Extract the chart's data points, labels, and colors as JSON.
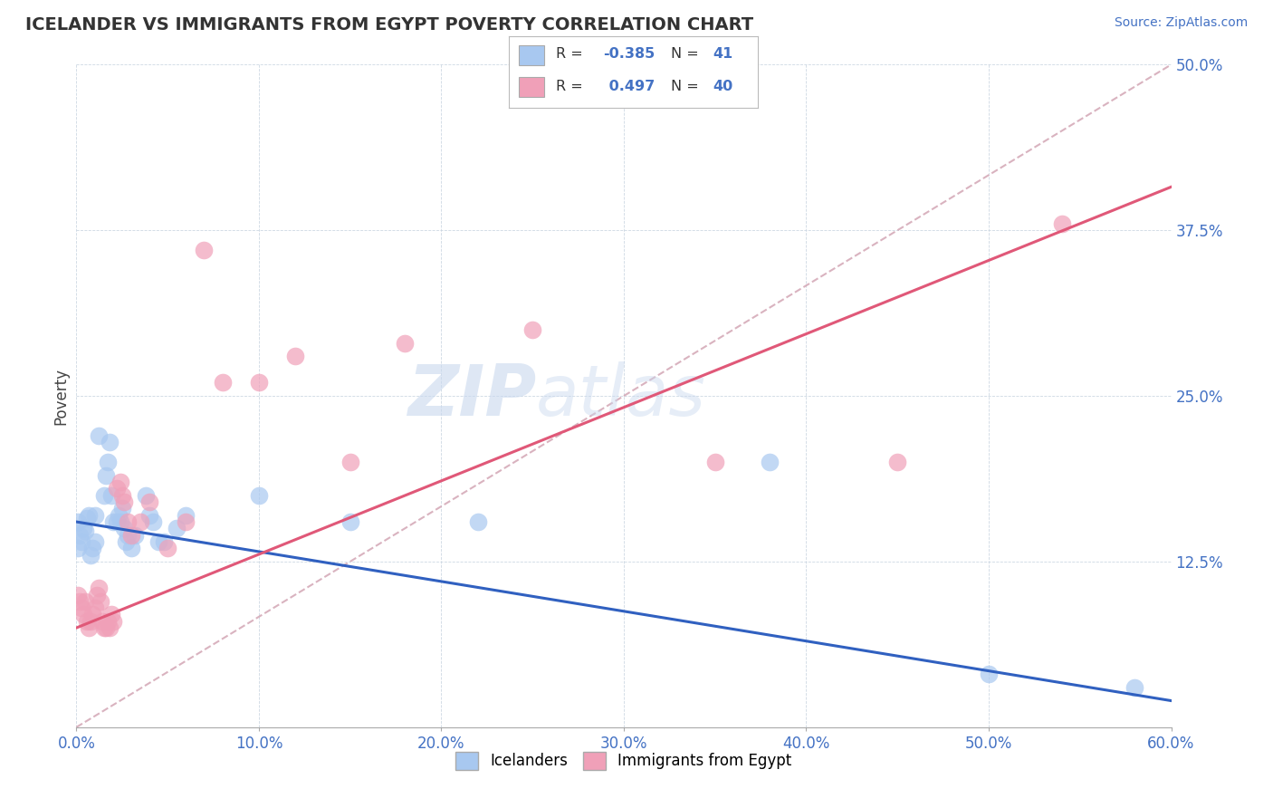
{
  "title": "ICELANDER VS IMMIGRANTS FROM EGYPT POVERTY CORRELATION CHART",
  "source": "Source: ZipAtlas.com",
  "xlim": [
    0,
    0.6
  ],
  "ylim": [
    0,
    0.5
  ],
  "ylabel": "Poverty",
  "legend_items": [
    "Icelanders",
    "Immigrants from Egypt"
  ],
  "R_icelander": -0.385,
  "N_icelander": 41,
  "R_egypt": 0.497,
  "N_egypt": 40,
  "icelander_color": "#a8c8f0",
  "egypt_color": "#f0a0b8",
  "icelander_line_color": "#3060c0",
  "egypt_line_color": "#e05878",
  "ref_line_color": "#d0a0b0",
  "watermark_color": "#dce8f8",
  "background_color": "#ffffff",
  "icelander_points": [
    [
      0.001,
      0.155
    ],
    [
      0.001,
      0.135
    ],
    [
      0.002,
      0.145
    ],
    [
      0.003,
      0.14
    ],
    [
      0.004,
      0.15
    ],
    [
      0.005,
      0.148
    ],
    [
      0.006,
      0.158
    ],
    [
      0.007,
      0.16
    ],
    [
      0.008,
      0.13
    ],
    [
      0.009,
      0.135
    ],
    [
      0.01,
      0.14
    ],
    [
      0.01,
      0.16
    ],
    [
      0.012,
      0.22
    ],
    [
      0.015,
      0.175
    ],
    [
      0.016,
      0.19
    ],
    [
      0.017,
      0.2
    ],
    [
      0.018,
      0.215
    ],
    [
      0.019,
      0.175
    ],
    [
      0.02,
      0.155
    ],
    [
      0.022,
      0.155
    ],
    [
      0.023,
      0.16
    ],
    [
      0.024,
      0.155
    ],
    [
      0.025,
      0.165
    ],
    [
      0.026,
      0.15
    ],
    [
      0.027,
      0.14
    ],
    [
      0.028,
      0.145
    ],
    [
      0.03,
      0.135
    ],
    [
      0.032,
      0.145
    ],
    [
      0.038,
      0.175
    ],
    [
      0.04,
      0.16
    ],
    [
      0.042,
      0.155
    ],
    [
      0.045,
      0.14
    ],
    [
      0.048,
      0.14
    ],
    [
      0.055,
      0.15
    ],
    [
      0.06,
      0.16
    ],
    [
      0.1,
      0.175
    ],
    [
      0.15,
      0.155
    ],
    [
      0.22,
      0.155
    ],
    [
      0.38,
      0.2
    ],
    [
      0.5,
      0.04
    ],
    [
      0.58,
      0.03
    ]
  ],
  "egypt_points": [
    [
      0.001,
      0.1
    ],
    [
      0.002,
      0.095
    ],
    [
      0.003,
      0.09
    ],
    [
      0.004,
      0.085
    ],
    [
      0.005,
      0.095
    ],
    [
      0.006,
      0.08
    ],
    [
      0.007,
      0.075
    ],
    [
      0.008,
      0.08
    ],
    [
      0.009,
      0.085
    ],
    [
      0.01,
      0.09
    ],
    [
      0.011,
      0.1
    ],
    [
      0.012,
      0.105
    ],
    [
      0.013,
      0.095
    ],
    [
      0.014,
      0.08
    ],
    [
      0.015,
      0.075
    ],
    [
      0.016,
      0.075
    ],
    [
      0.017,
      0.08
    ],
    [
      0.018,
      0.075
    ],
    [
      0.019,
      0.085
    ],
    [
      0.02,
      0.08
    ],
    [
      0.022,
      0.18
    ],
    [
      0.024,
      0.185
    ],
    [
      0.025,
      0.175
    ],
    [
      0.026,
      0.17
    ],
    [
      0.028,
      0.155
    ],
    [
      0.03,
      0.145
    ],
    [
      0.035,
      0.155
    ],
    [
      0.04,
      0.17
    ],
    [
      0.05,
      0.135
    ],
    [
      0.06,
      0.155
    ],
    [
      0.07,
      0.36
    ],
    [
      0.08,
      0.26
    ],
    [
      0.1,
      0.26
    ],
    [
      0.12,
      0.28
    ],
    [
      0.15,
      0.2
    ],
    [
      0.18,
      0.29
    ],
    [
      0.25,
      0.3
    ],
    [
      0.35,
      0.2
    ],
    [
      0.45,
      0.2
    ],
    [
      0.54,
      0.38
    ]
  ]
}
